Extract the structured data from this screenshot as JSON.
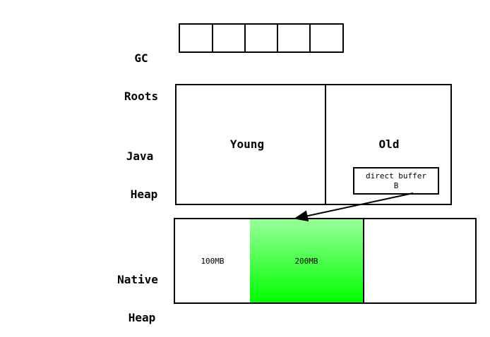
{
  "gc_roots": {
    "label_line1": "GC",
    "label_line2": "Roots",
    "slot_count": 5
  },
  "java_heap": {
    "label_line1": "Java",
    "label_line2": "Heap",
    "young_label": "Young",
    "old_label": "Old",
    "direct_buffer_line1": "direct buffer",
    "direct_buffer_line2": "B"
  },
  "native_heap": {
    "label_line1": "Native",
    "label_line2": "Heap",
    "segment_1_label": "100MB",
    "segment_2_label": "200MB",
    "highlight_color_top": "#99ff99",
    "highlight_color_bottom": "#00ff00"
  }
}
